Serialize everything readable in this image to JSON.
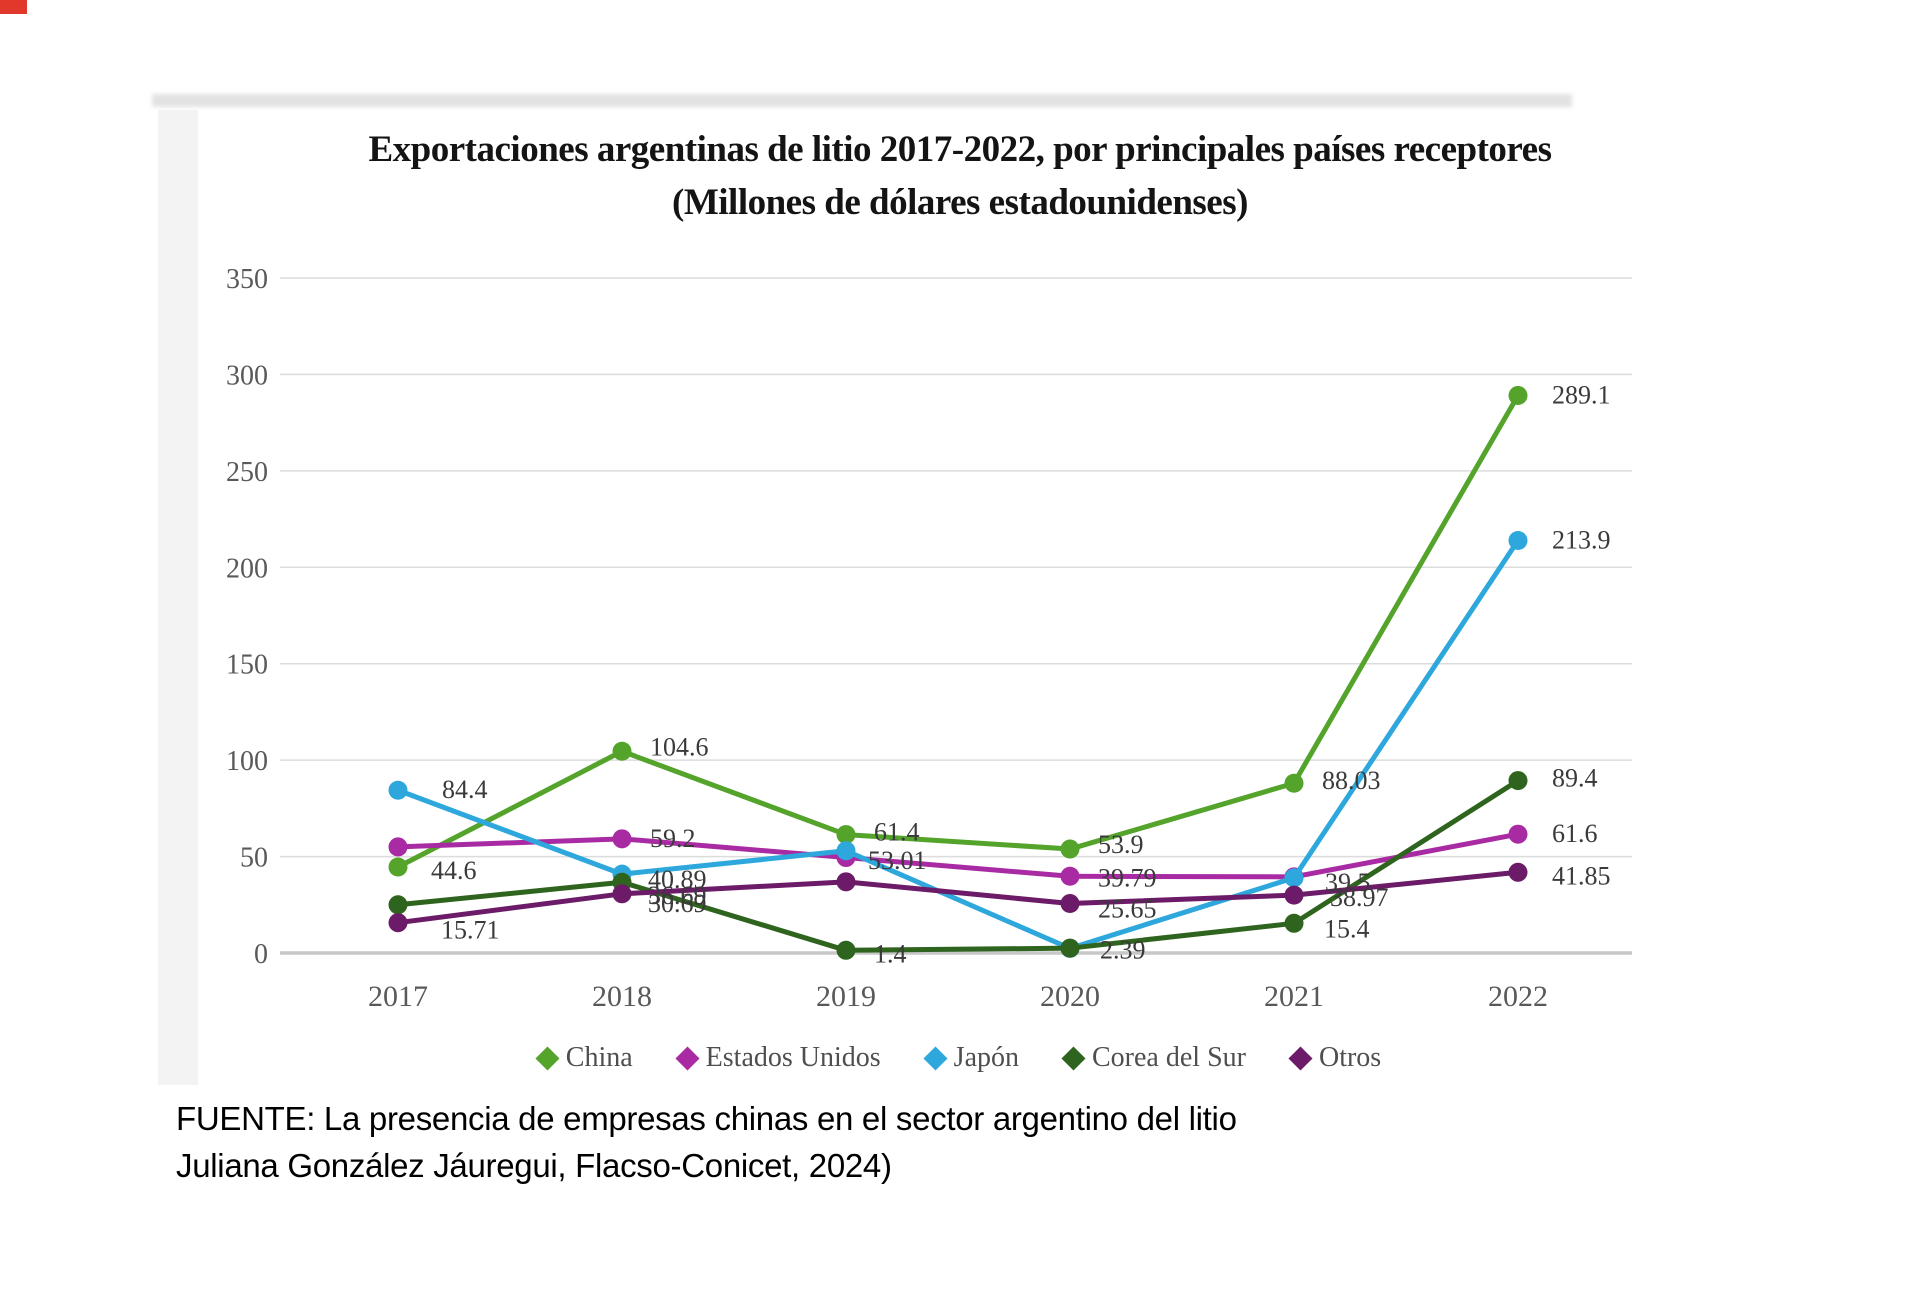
{
  "title": {
    "line1": "Exportaciones argentinas de litio 2017-2022, por principales países receptores",
    "line2": "(Millones de dólares estadounidenses)"
  },
  "source": {
    "line1": "FUENTE:  La presencia de empresas chinas en el sector argentino del litio",
    "line2": "Juliana González Jáuregui, Flacso-Conicet, 2024)"
  },
  "artifact_colors": {
    "corner_mark": "#e2382c"
  },
  "chart_data": {
    "type": "line",
    "title": "Exportaciones argentinas de litio 2017-2022, por principales países receptores",
    "subtitle": "(Millones de dólares estadounidenses)",
    "x": [
      "2017",
      "2018",
      "2019",
      "2020",
      "2021",
      "2022"
    ],
    "ylim": [
      0,
      350
    ],
    "yticks": [
      0,
      50,
      100,
      150,
      200,
      250,
      300,
      350
    ],
    "grid": true,
    "legend_position": "bottom",
    "marker": "circle",
    "legend_marker": "diamond",
    "axis_text_color": "#595959",
    "grid_color": "#dcdcdc",
    "zero_line_color": "#c7c7c7",
    "label_text_color": "#3a3a3a",
    "series": [
      {
        "name": "China",
        "color": "#54A32B",
        "values": [
          44.6,
          104.6,
          61.4,
          53.9,
          88.03,
          289.1
        ],
        "labels": [
          "44.6",
          "104.6",
          "61.4",
          "53.9",
          "88.03",
          "289.1"
        ]
      },
      {
        "name": "Estados Unidos",
        "color": "#A92BA4",
        "values": [
          55.0,
          59.2,
          49.5,
          39.79,
          39.5,
          61.6
        ],
        "labels": [
          null,
          "59.2",
          null,
          "39.79",
          "39.5",
          "61.6"
        ]
      },
      {
        "name": "Japón",
        "color": "#2EA8DC",
        "values": [
          84.4,
          40.89,
          53.01,
          2.39,
          38.97,
          213.9
        ],
        "labels": [
          "84.4",
          "40.89",
          "53.01",
          "2.39",
          "38.97",
          "213.9"
        ]
      },
      {
        "name": "Corea del Sur",
        "color": "#2F641E",
        "values": [
          25.0,
          36.69,
          1.4,
          2.5,
          15.4,
          89.4
        ],
        "labels": [
          null,
          "36.69",
          "1.4",
          null,
          "15.4",
          "89.4"
        ]
      },
      {
        "name": "Otros",
        "color": "#6B1B67",
        "values": [
          15.71,
          30.69,
          36.9,
          25.65,
          30.0,
          41.85
        ],
        "labels": [
          "15.71",
          "30.69",
          null,
          "25.65",
          null,
          "41.85"
        ]
      }
    ]
  }
}
